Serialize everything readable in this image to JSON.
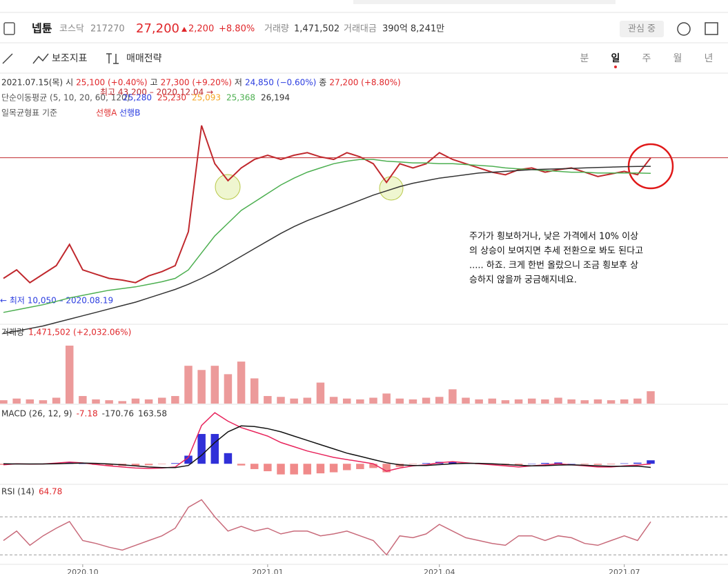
{
  "header": {
    "name": "넵튠",
    "market": "코스닥",
    "code": "217270",
    "price": "27,200",
    "change": "2,200",
    "change_pct": "+8.80%",
    "volume_label": "거래량",
    "volume": "1,471,502",
    "amount_label": "거래대금",
    "amount": "390억 8,241만",
    "watch": "관심 중"
  },
  "toolbar": {
    "indicators": "보조지표",
    "strategy": "매매전략",
    "periods": [
      "분",
      "일",
      "주",
      "월",
      "년"
    ]
  },
  "info": {
    "date": "2021.07.15(목)",
    "open_label": "시",
    "open": "25,100 (+0.40%)",
    "high_label": "고",
    "high": "27,300 (+9.20%)",
    "low_label": "저",
    "low": "24,850 (−0.60%)",
    "close_label": "종",
    "close": "27,200 (+8.80%)"
  },
  "ma_legend": {
    "label": "단순이동평균 (5, 10, 20, 60, 120)",
    "values": [
      "25,280",
      "25,230",
      "25,093",
      "25,368",
      "26,194"
    ],
    "colors": [
      "#2b3de0",
      "#e03030",
      "#f5a623",
      "#4caf50",
      "#333333"
    ]
  },
  "ichimoku": {
    "label": "일목균형표 기준",
    "span_a": "선행A",
    "span_b": "선행B"
  },
  "annotations": {
    "high": "최고 43,200 – 2020.12.04 →",
    "low": "← 최저 10,050 – 2020.08.19"
  },
  "note": [
    "주가가 횡보하거나, 낮은 가격에서 10% 이상",
    "의 상승이 보여지면 추세 전환으로 봐도 된다고",
    "..... 하죠.  크게 한번 올랐으니 조금 횡보후 상",
    "승하지 않을까 궁금해지네요."
  ],
  "chart_data": [
    {
      "type": "line",
      "xlim": [
        0,
        49
      ],
      "ylim": [
        7600,
        37000
      ],
      "current_price": 27200,
      "series": [
        {
          "color": "#c0282d",
          "values": [
            13000,
            14000,
            12500,
            13500,
            14500,
            17000,
            14000,
            13500,
            13000,
            12800,
            12500,
            13300,
            13800,
            14500,
            18500,
            31000,
            26500,
            24500,
            26000,
            27000,
            27500,
            27000,
            27500,
            27800,
            27300,
            27000,
            27800,
            27300,
            26500,
            24300,
            26500,
            26000,
            26500,
            27800,
            27000,
            26500,
            26000,
            25500,
            25200,
            25800,
            26000,
            25500,
            25800,
            26000,
            25500,
            25000,
            25300,
            25600,
            25200,
            27200
          ]
        },
        {
          "color": "#4caf50",
          "values": [
            9000,
            9300,
            9600,
            9900,
            10300,
            10700,
            11000,
            11300,
            11600,
            11800,
            12000,
            12300,
            12600,
            13000,
            14000,
            16000,
            18000,
            19500,
            21000,
            22000,
            23000,
            24000,
            24800,
            25500,
            26000,
            26500,
            26800,
            27000,
            27000,
            26800,
            26700,
            26600,
            26600,
            26500,
            26500,
            26400,
            26300,
            26200,
            26000,
            25900,
            25800,
            25700,
            25600,
            25500,
            25500,
            25400,
            25400,
            25400,
            25400,
            25368
          ]
        },
        {
          "color": "#333333",
          "values": [
            6500,
            6800,
            7100,
            7400,
            7800,
            8200,
            8600,
            9000,
            9400,
            9800,
            10200,
            10700,
            11200,
            11700,
            12300,
            13000,
            13800,
            14700,
            15600,
            16500,
            17400,
            18300,
            19100,
            19800,
            20400,
            21000,
            21600,
            22200,
            22800,
            23300,
            23800,
            24200,
            24500,
            24800,
            25000,
            25200,
            25400,
            25500,
            25600,
            25700,
            25800,
            25850,
            25900,
            25950,
            26000,
            26050,
            26100,
            26150,
            26180,
            26194
          ]
        }
      ]
    },
    {
      "type": "bar",
      "title": "거래량",
      "legend_value": "1,471,502 (+2,032.06%)",
      "xlim": [
        0,
        49
      ],
      "ylim": [
        0,
        7800000
      ],
      "color": "#ec9a9a",
      "values": [
        400000,
        600000,
        500000,
        400000,
        700000,
        6900000,
        900000,
        500000,
        400000,
        300000,
        600000,
        500000,
        700000,
        900000,
        4500000,
        4000000,
        4500000,
        3500000,
        5000000,
        3000000,
        900000,
        800000,
        600000,
        700000,
        2500000,
        800000,
        600000,
        500000,
        700000,
        1200000,
        600000,
        500000,
        700000,
        800000,
        1700000,
        700000,
        500000,
        600000,
        400000,
        500000,
        600000,
        500000,
        700000,
        500000,
        400000,
        500000,
        400000,
        500000,
        600000,
        1471502
      ]
    },
    {
      "type": "macd",
      "title": "MACD (26, 12, 9)",
      "xlim": [
        0,
        49
      ],
      "ylim": [
        -900,
        2600
      ],
      "colors": {
        "positive": "#3030d8",
        "negative": "#f08a8a"
      },
      "series": [
        {
          "color": "#e8245c",
          "values": [
            -50,
            0,
            -20,
            -10,
            30,
            80,
            40,
            -30,
            -100,
            -150,
            -200,
            -220,
            -200,
            -150,
            300,
            1800,
            2400,
            2000,
            1700,
            1500,
            1300,
            1000,
            800,
            600,
            450,
            300,
            200,
            100,
            0,
            -350,
            -200,
            -100,
            -50,
            50,
            100,
            50,
            0,
            -50,
            -100,
            -150,
            -100,
            -50,
            0,
            -50,
            -100,
            -150,
            -150,
            -100,
            -60,
            -7.18
          ]
        },
        {
          "color": "#111111",
          "values": [
            0,
            -10,
            -10,
            -10,
            0,
            20,
            30,
            20,
            -10,
            -50,
            -100,
            -150,
            -180,
            -180,
            -80,
            400,
            1000,
            1500,
            1780,
            1750,
            1650,
            1500,
            1300,
            1100,
            900,
            700,
            500,
            350,
            200,
            50,
            -50,
            -80,
            -80,
            -40,
            0,
            20,
            20,
            0,
            -30,
            -70,
            -100,
            -90,
            -60,
            -50,
            -70,
            -100,
            -120,
            -120,
            -110,
            -170.76
          ]
        }
      ],
      "oscillator": [
        -50,
        10,
        -10,
        0,
        30,
        60,
        10,
        -50,
        -90,
        -100,
        -100,
        -70,
        -20,
        30,
        380,
        1400,
        1400,
        500,
        -80,
        -250,
        -350,
        -500,
        -500,
        -500,
        -450,
        -400,
        -300,
        -250,
        -200,
        -400,
        -150,
        -20,
        30,
        90,
        100,
        30,
        -20,
        -50,
        -70,
        -80,
        0,
        40,
        60,
        0,
        -30,
        -50,
        -30,
        20,
        50,
        163.58
      ]
    },
    {
      "type": "line",
      "title": "RSI (14)",
      "xlim": [
        0,
        49
      ],
      "ylim": [
        20,
        102
      ],
      "levels": [
        70,
        30
      ],
      "xticks": [
        {
          "value": 6,
          "label": "2020.10"
        },
        {
          "value": 20,
          "label": "2021.01"
        },
        {
          "value": 33,
          "label": "2021.04"
        },
        {
          "value": 47,
          "label": "2021.07"
        }
      ],
      "series": [
        {
          "color": "#c86a7a",
          "values": [
            45,
            55,
            40,
            50,
            58,
            65,
            45,
            42,
            38,
            35,
            40,
            45,
            50,
            58,
            80,
            88,
            70,
            55,
            60,
            55,
            58,
            52,
            55,
            55,
            50,
            52,
            55,
            50,
            45,
            30,
            50,
            48,
            52,
            62,
            55,
            48,
            45,
            42,
            40,
            50,
            50,
            45,
            50,
            48,
            42,
            40,
            45,
            50,
            45,
            64.78
          ]
        }
      ]
    }
  ]
}
